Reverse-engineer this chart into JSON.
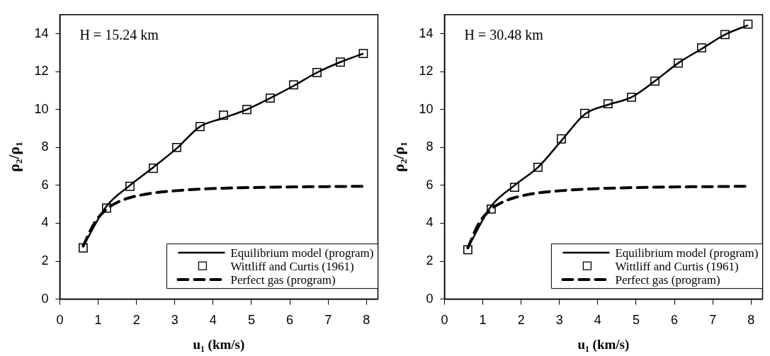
{
  "chart_data": [
    {
      "type": "line",
      "annotations": [
        "H = 15.24 km"
      ],
      "xlabel": "u₁ (km/s)",
      "ylabel": "ρ₂/ρ₁",
      "xlim": [
        0,
        8.3
      ],
      "xticks": [
        0,
        1,
        2,
        3,
        4,
        5,
        6,
        7,
        8
      ],
      "ylim": [
        0,
        15
      ],
      "yticks": [
        0,
        2,
        4,
        6,
        8,
        10,
        12,
        14
      ],
      "grid": false,
      "legend": "bottom right",
      "series": [
        {
          "name": "Equilibrium model (program)",
          "color": "#000000",
          "marker": "none",
          "line_style": "solid",
          "x": [
            0.61,
            1.22,
            1.83,
            2.44,
            3.05,
            3.66,
            4.27,
            4.88,
            5.49,
            6.1,
            6.71,
            7.32,
            7.92
          ],
          "values": [
            2.8,
            4.9,
            6.0,
            6.95,
            7.95,
            9.1,
            9.55,
            10.0,
            10.6,
            11.25,
            11.95,
            12.5,
            12.95
          ]
        },
        {
          "name": "Wittliff and Curtis (1961)",
          "type": "scatter",
          "color": "#000000",
          "marker": "square",
          "x": [
            0.61,
            1.22,
            1.83,
            2.44,
            3.05,
            3.66,
            4.27,
            4.88,
            5.49,
            6.1,
            6.71,
            7.32,
            7.92
          ],
          "values": [
            2.7,
            4.8,
            5.95,
            6.9,
            8.0,
            9.1,
            9.7,
            10.0,
            10.6,
            11.3,
            11.95,
            12.5,
            12.95
          ]
        },
        {
          "name": "Perfect gas (program)",
          "color": "#000000",
          "marker": "none",
          "line_style": "dashed",
          "x": [
            0.61,
            0.9,
            1.22,
            1.5,
            1.83,
            2.44,
            3.05,
            3.66,
            4.27,
            4.88,
            5.49,
            6.1,
            6.71,
            7.32,
            7.92
          ],
          "values": [
            2.8,
            4.0,
            4.75,
            5.1,
            5.35,
            5.6,
            5.72,
            5.8,
            5.85,
            5.88,
            5.9,
            5.92,
            5.93,
            5.94,
            5.95
          ]
        }
      ]
    },
    {
      "type": "line",
      "annotations": [
        "H = 30.48 km"
      ],
      "xlabel": "u₁ (km/s)",
      "ylabel": "ρ₂/ρ₁",
      "xlim": [
        0,
        8.3
      ],
      "xticks": [
        0,
        1,
        2,
        3,
        4,
        5,
        6,
        7,
        8
      ],
      "ylim": [
        0,
        15
      ],
      "yticks": [
        0,
        2,
        4,
        6,
        8,
        10,
        12,
        14
      ],
      "grid": false,
      "legend": "bottom right",
      "series": [
        {
          "name": "Equilibrium model (program)",
          "color": "#000000",
          "marker": "none",
          "line_style": "solid",
          "x": [
            0.61,
            1.22,
            1.83,
            2.44,
            3.05,
            3.66,
            4.27,
            4.88,
            5.49,
            6.1,
            6.71,
            7.32,
            7.92
          ],
          "values": [
            2.7,
            4.9,
            6.0,
            6.95,
            8.35,
            9.75,
            10.25,
            10.65,
            11.5,
            12.45,
            13.2,
            13.95,
            14.45
          ]
        },
        {
          "name": "Wittliff and Curtis (1961)",
          "type": "scatter",
          "color": "#000000",
          "marker": "square",
          "x": [
            0.61,
            1.22,
            1.83,
            2.44,
            3.05,
            3.66,
            4.27,
            4.88,
            5.49,
            6.1,
            6.71,
            7.32,
            7.92
          ],
          "values": [
            2.6,
            4.75,
            5.9,
            6.95,
            8.45,
            9.8,
            10.3,
            10.65,
            11.5,
            12.45,
            13.25,
            13.95,
            14.5
          ]
        },
        {
          "name": "Perfect gas (program)",
          "color": "#000000",
          "marker": "none",
          "line_style": "dashed",
          "x": [
            0.61,
            0.9,
            1.22,
            1.5,
            1.83,
            2.44,
            3.05,
            3.66,
            4.27,
            4.88,
            5.49,
            6.1,
            6.71,
            7.32,
            7.92
          ],
          "values": [
            2.7,
            4.0,
            4.75,
            5.1,
            5.35,
            5.6,
            5.72,
            5.8,
            5.85,
            5.88,
            5.9,
            5.92,
            5.93,
            5.94,
            5.95
          ]
        }
      ]
    }
  ]
}
